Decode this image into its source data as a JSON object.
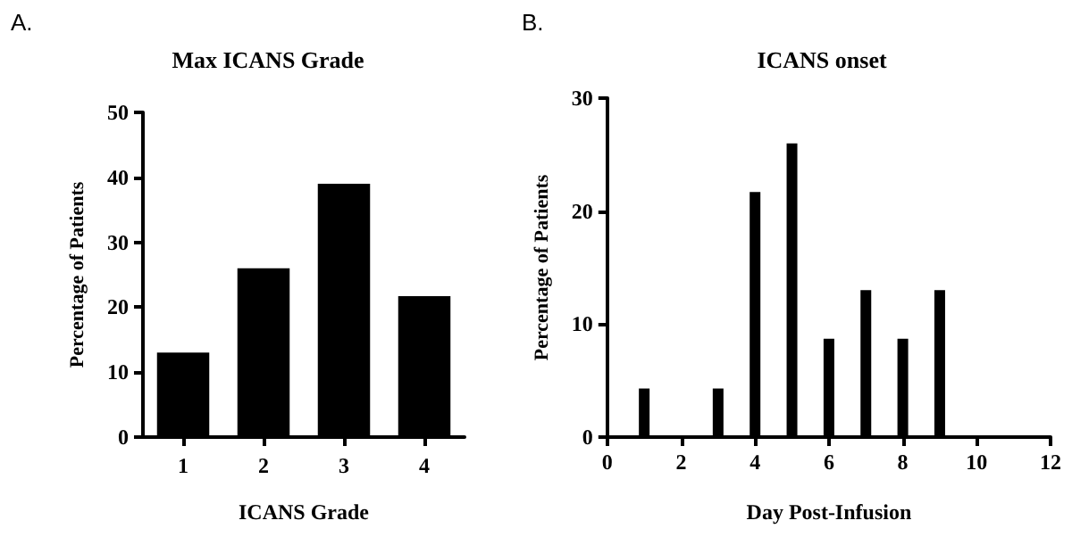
{
  "chart_data": [
    {
      "type": "bar",
      "title": "Max ICANS Grade",
      "annotations": [
        "A."
      ],
      "xlabel": "ICANS Grade",
      "ylabel": "Percentage of Patients",
      "categories": [
        "1",
        "2",
        "3",
        "4"
      ],
      "values": [
        13,
        26,
        39,
        21.7
      ],
      "color": "#000000",
      "ylim": [
        0,
        50
      ],
      "yticks": [
        0,
        10,
        20,
        30,
        40,
        50
      ],
      "grid": false
    },
    {
      "type": "bar",
      "title": "ICANS onset",
      "annotations": [
        "B."
      ],
      "xlabel": "Day Post-Infusion",
      "ylabel": "Percentage of Patients",
      "x": [
        1,
        3,
        4,
        5,
        6,
        7,
        8,
        9
      ],
      "values": [
        4.3,
        4.3,
        21.7,
        26,
        8.7,
        13,
        8.7,
        13
      ],
      "color": "#000000",
      "xlim": [
        0,
        12
      ],
      "xticks": [
        0,
        2,
        4,
        6,
        8,
        10,
        12
      ],
      "ylim": [
        0,
        30
      ],
      "yticks": [
        0,
        10,
        20,
        30
      ],
      "grid": false
    }
  ]
}
